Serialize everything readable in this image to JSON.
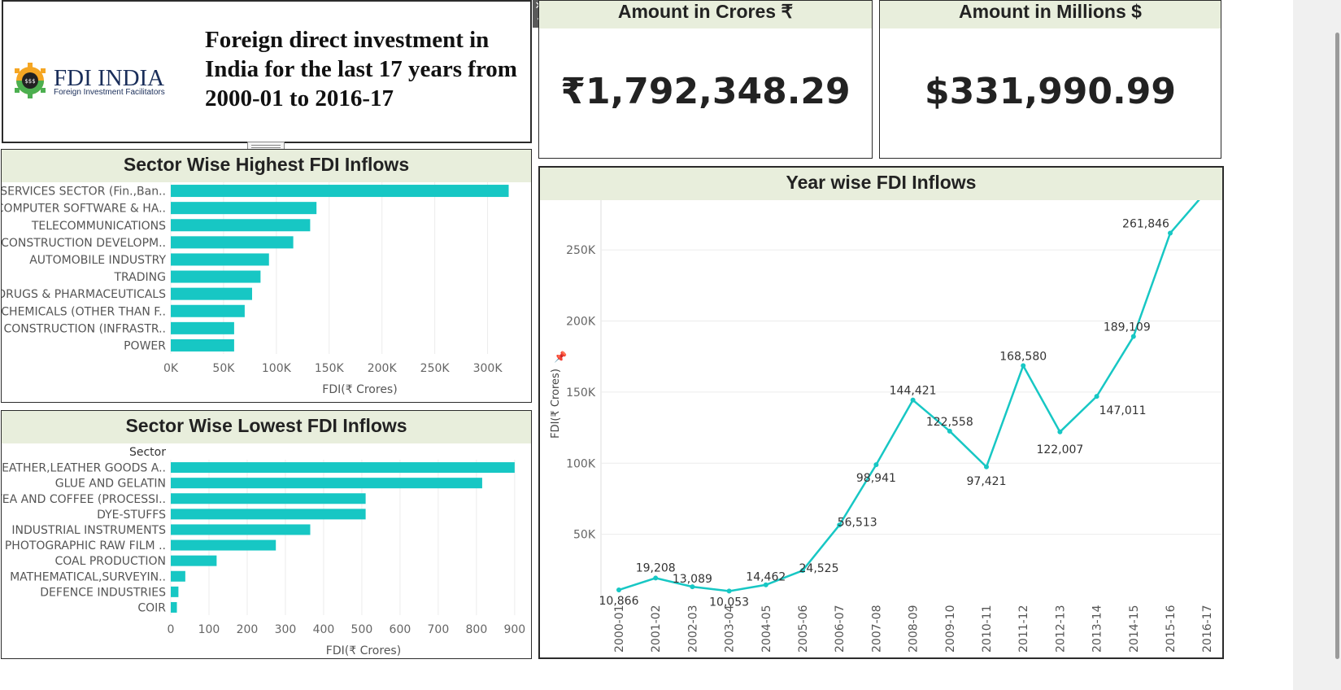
{
  "header": {
    "logo_title": "FDI INDIA",
    "logo_subtitle": "Foreign Investment Facilitators",
    "title": "Foreign direct investment in India for the last 17 years from 2000-01 to 2016-17"
  },
  "kpi": {
    "crores_title": "Amount in Crores ₹",
    "crores_value": "₹1,792,348.29",
    "millions_title": "Amount in Millions $",
    "millions_value": "$331,990.99"
  },
  "colors": {
    "bar": "#17c7c4",
    "line": "#17c7c4",
    "header_bg": "#e8eedc",
    "grid": "#ececec"
  },
  "icons": {
    "close": "close-icon",
    "menu": "dropdown-arrow-icon",
    "resize": "resize-handle-icon",
    "pin": "pin-icon"
  },
  "chart_data": [
    {
      "type": "bar",
      "title": "Sector Wise Highest FDI Inflows",
      "xlabel": "FDI(₹ Crores)",
      "categories": [
        "SERVICES SECTOR (Fin.,Ban..",
        "COMPUTER SOFTWARE & HA..",
        "TELECOMMUNICATIONS",
        "CONSTRUCTION DEVELOPM..",
        "AUTOMOBILE INDUSTRY",
        "TRADING",
        "DRUGS & PHARMACEUTICALS",
        "CHEMICALS (OTHER THAN F..",
        "CONSTRUCTION (INFRASTR..",
        "POWER"
      ],
      "values": [
        320000,
        138000,
        132000,
        116000,
        93000,
        85000,
        77000,
        70000,
        60000,
        60000
      ],
      "xlim": [
        0,
        335000
      ],
      "ticks": [
        0,
        50000,
        100000,
        150000,
        200000,
        250000,
        300000
      ],
      "tick_labels": [
        "0K",
        "50K",
        "100K",
        "150K",
        "200K",
        "250K",
        "300K"
      ]
    },
    {
      "type": "bar",
      "title": "Sector Wise Lowest FDI Inflows",
      "category_header": "Sector",
      "xlabel": "FDI(₹ Crores)",
      "categories": [
        "LEATHER,LEATHER GOODS A..",
        "GLUE AND GELATIN",
        "TEA AND COFFEE (PROCESSI..",
        "DYE-STUFFS",
        "INDUSTRIAL INSTRUMENTS",
        "PHOTOGRAPHIC RAW FILM ..",
        "COAL PRODUCTION",
        "MATHEMATICAL,SURVEYIN..",
        "DEFENCE INDUSTRIES",
        "COIR"
      ],
      "values": [
        900,
        815,
        510,
        510,
        365,
        275,
        120,
        38,
        20,
        16
      ],
      "xlim": [
        0,
        945
      ],
      "ticks": [
        0,
        100,
        200,
        300,
        400,
        500,
        600,
        700,
        800,
        900
      ],
      "tick_labels": [
        "0",
        "100",
        "200",
        "300",
        "400",
        "500",
        "600",
        "700",
        "800",
        "900"
      ]
    },
    {
      "type": "line",
      "title": "Year wise FDI Inflows",
      "ylabel": "FDI(₹ Crores)",
      "x": [
        "2000-01",
        "2001-02",
        "2002-03",
        "2003-04",
        "2004-05",
        "2005-06",
        "2006-07",
        "2007-08",
        "2008-09",
        "2009-10",
        "2010-11",
        "2011-12",
        "2012-13",
        "2013-14",
        "2014-15",
        "2015-16",
        "2016-17"
      ],
      "y": [
        10866,
        19208,
        13089,
        10053,
        14462,
        24525,
        56513,
        98941,
        144421,
        122558,
        97421,
        168580,
        122007,
        147011,
        189109,
        261846,
        291696
      ],
      "labels": [
        "10,866",
        "19,208",
        "13,089",
        "10,053",
        "14,462",
        "24,525",
        "56,513",
        "98,941",
        "144,421",
        "122,558",
        "97,421",
        "168,580",
        "122,007",
        "147,011",
        "189,109",
        "261,846",
        ""
      ],
      "ylim": [
        0,
        285000
      ],
      "yticks": [
        50000,
        100000,
        150000,
        200000,
        250000
      ],
      "ytick_labels": [
        "50K",
        "100K",
        "150K",
        "200K",
        "250K"
      ]
    }
  ]
}
